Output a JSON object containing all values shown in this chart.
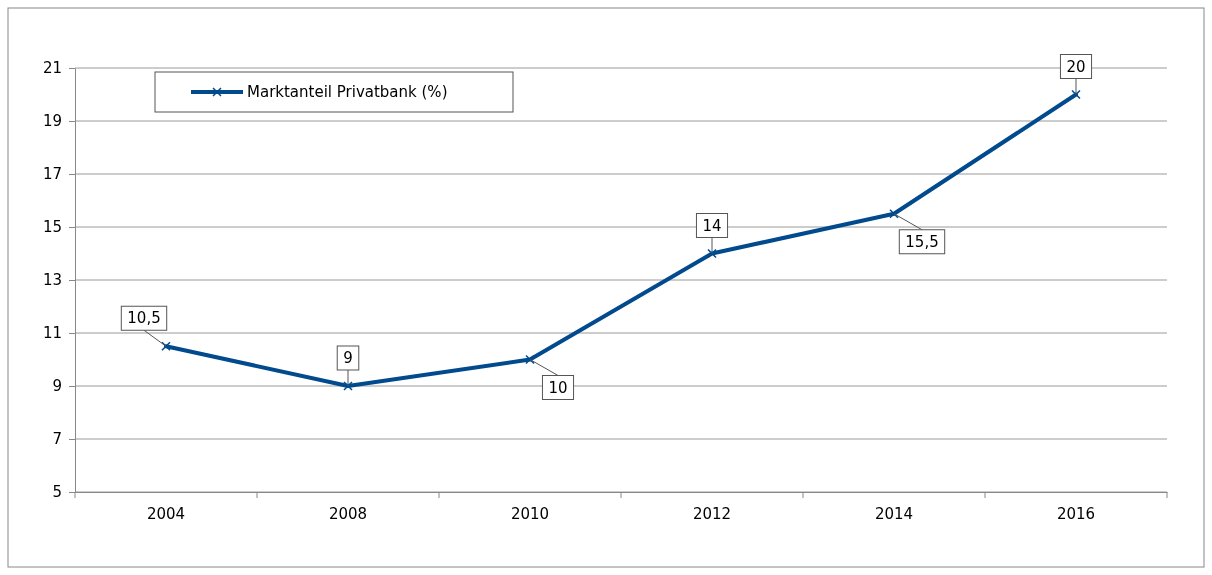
{
  "chart_data": {
    "type": "line",
    "categories": [
      "2004",
      "2008",
      "2010",
      "2012",
      "2014",
      "2016"
    ],
    "series": [
      {
        "name": "Marktanteil Privatbank (%)",
        "color": "#004a8d",
        "values": [
          10.5,
          9,
          10,
          14,
          15.5,
          20
        ],
        "value_labels": [
          "10,5",
          "9",
          "10",
          "14",
          "15,5",
          "20"
        ]
      }
    ],
    "ylim": [
      5,
      21
    ],
    "yticks": [
      5,
      7,
      9,
      11,
      13,
      15,
      17,
      19,
      21
    ],
    "grid": "y",
    "legend": "top left",
    "marker": "cross",
    "line_style": "solid"
  }
}
